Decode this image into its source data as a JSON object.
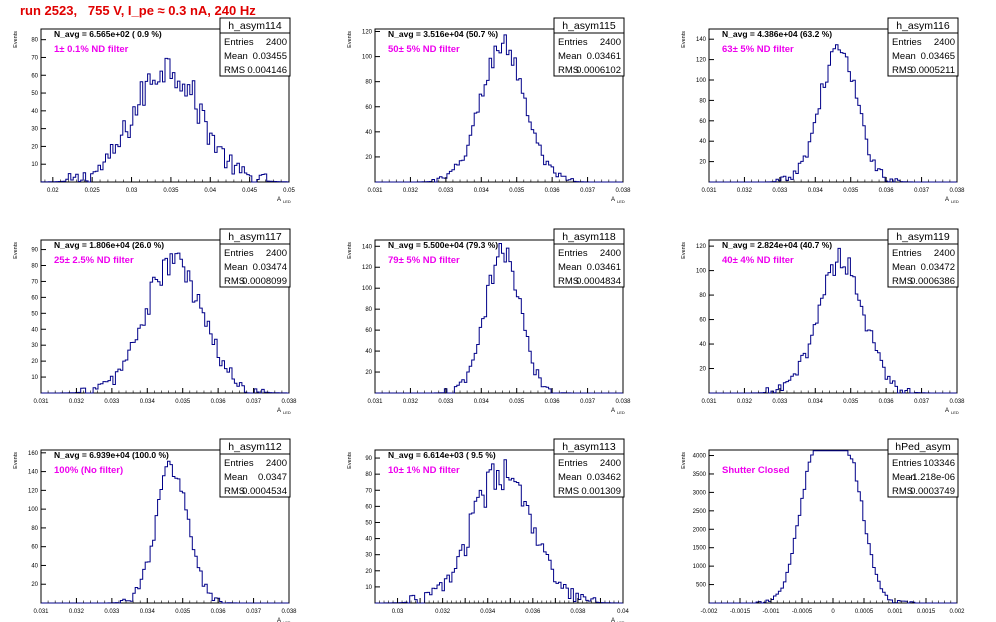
{
  "header": {
    "title": "run 2523,   755 V, I_pe ≈ 0.3 nA, 240 Hz"
  },
  "colors": {
    "histogram": "#000088",
    "filter_label": "#ee00ee",
    "title": "#e00000",
    "frame": "#000000"
  },
  "chart_data": [
    {
      "type": "histogram",
      "name": "h_asym114",
      "filter_label": "1± 0.1% ND filter",
      "navg": "N_avg = 6.565e+02 ( 0.9 %)",
      "stats": {
        "Entries": "2400",
        "Mean": "0.03455",
        "RMS": "0.004146"
      },
      "ylabel": "Events",
      "xlabel": "A",
      "xlabel_sub": "LED",
      "xlim": [
        0.0185,
        0.05
      ],
      "ylim": [
        0,
        86
      ],
      "xticks": [
        0.02,
        0.025,
        0.03,
        0.035,
        0.04,
        0.045,
        0.05
      ],
      "xtick_labels": [
        "0.02",
        "0.025",
        "0.03",
        "0.035",
        "0.04",
        "0.045",
        "0.05"
      ],
      "yticks": [
        10,
        20,
        30,
        40,
        50,
        60,
        70,
        80
      ],
      "ytick_labels": [
        "10",
        "20",
        "30",
        "40",
        "50",
        "60",
        "70",
        "80"
      ],
      "dist": {
        "mu": 0.03455,
        "sigma": 0.004146,
        "peak": 65,
        "noise": 10
      }
    },
    {
      "type": "histogram",
      "name": "h_asym115",
      "filter_label": "50± 5% ND filter",
      "navg": "N_avg = 3.516e+04 (50.7 %)",
      "stats": {
        "Entries": "2400",
        "Mean": "0.03461",
        "RMS": "0.0006102"
      },
      "ylabel": "Events",
      "xlabel": "A",
      "xlabel_sub": "LED",
      "xlim": [
        0.031,
        0.038
      ],
      "ylim": [
        0,
        122
      ],
      "xticks": [
        0.031,
        0.032,
        0.033,
        0.034,
        0.035,
        0.036,
        0.037,
        0.038
      ],
      "xtick_labels": [
        "0.031",
        "0.032",
        "0.033",
        "0.034",
        "0.035",
        "0.036",
        "0.037",
        "0.038"
      ],
      "yticks": [
        20,
        40,
        60,
        80,
        100,
        120
      ],
      "ytick_labels": [
        "20",
        "40",
        "60",
        "80",
        "100",
        "120"
      ],
      "dist": {
        "mu": 0.03461,
        "sigma": 0.0006102,
        "peak": 110,
        "noise": 9
      }
    },
    {
      "type": "histogram",
      "name": "h_asym116",
      "filter_label": "63± 5% ND filter",
      "navg": "N_avg = 4.386e+04 (63.2 %)",
      "stats": {
        "Entries": "2400",
        "Mean": "0.03465",
        "RMS": "0.0005211"
      },
      "ylabel": "Events",
      "xlabel": "A",
      "xlabel_sub": "LED",
      "xlim": [
        0.031,
        0.038
      ],
      "ylim": [
        0,
        150
      ],
      "xticks": [
        0.031,
        0.032,
        0.033,
        0.034,
        0.035,
        0.036,
        0.037,
        0.038
      ],
      "xtick_labels": [
        "0.031",
        "0.032",
        "0.033",
        "0.034",
        "0.035",
        "0.036",
        "0.037",
        "0.038"
      ],
      "yticks": [
        20,
        40,
        60,
        80,
        100,
        120,
        140
      ],
      "ytick_labels": [
        "20",
        "40",
        "60",
        "80",
        "100",
        "120",
        "140"
      ],
      "dist": {
        "mu": 0.03465,
        "sigma": 0.0005211,
        "peak": 130,
        "noise": 10
      }
    },
    {
      "type": "histogram",
      "name": "h_asym117",
      "filter_label": "25± 2.5% ND filter",
      "navg": "N_avg = 1.806e+04 (26.0 %)",
      "stats": {
        "Entries": "2400",
        "Mean": "0.03474",
        "RMS": "0.0008099"
      },
      "ylabel": "Events",
      "xlabel": "A",
      "xlabel_sub": "LED",
      "xlim": [
        0.031,
        0.038
      ],
      "ylim": [
        0,
        96
      ],
      "xticks": [
        0.031,
        0.032,
        0.033,
        0.034,
        0.035,
        0.036,
        0.037,
        0.038
      ],
      "xtick_labels": [
        "0.031",
        "0.032",
        "0.033",
        "0.034",
        "0.035",
        "0.036",
        "0.037",
        "0.038"
      ],
      "yticks": [
        10,
        20,
        30,
        40,
        50,
        60,
        70,
        80,
        90
      ],
      "ytick_labels": [
        "10",
        "20",
        "30",
        "40",
        "50",
        "60",
        "70",
        "80",
        "90"
      ],
      "dist": {
        "mu": 0.03474,
        "sigma": 0.0008099,
        "peak": 82,
        "noise": 9
      }
    },
    {
      "type": "histogram",
      "name": "h_asym118",
      "filter_label": "79± 5% ND filter",
      "navg": "N_avg = 5.500e+04 (79.3 %)",
      "stats": {
        "Entries": "2400",
        "Mean": "0.03461",
        "RMS": "0.0004834"
      },
      "ylabel": "Events",
      "xlabel": "A",
      "xlabel_sub": "LED",
      "xlim": [
        0.031,
        0.038
      ],
      "ylim": [
        0,
        146
      ],
      "xticks": [
        0.031,
        0.032,
        0.033,
        0.034,
        0.035,
        0.036,
        0.037,
        0.038
      ],
      "xtick_labels": [
        "0.031",
        "0.032",
        "0.033",
        "0.034",
        "0.035",
        "0.036",
        "0.037",
        "0.038"
      ],
      "yticks": [
        20,
        40,
        60,
        80,
        100,
        120,
        140
      ],
      "ytick_labels": [
        "20",
        "40",
        "60",
        "80",
        "100",
        "120",
        "140"
      ],
      "dist": {
        "mu": 0.03461,
        "sigma": 0.0004834,
        "peak": 135,
        "noise": 11
      }
    },
    {
      "type": "histogram",
      "name": "h_asym119",
      "filter_label": "40± 4% ND filter",
      "navg": "N_avg = 2.824e+04 (40.7 %)",
      "stats": {
        "Entries": "2400",
        "Mean": "0.03472",
        "RMS": "0.0006386"
      },
      "ylabel": "Events",
      "xlabel": "A",
      "xlabel_sub": "LED",
      "xlim": [
        0.031,
        0.038
      ],
      "ylim": [
        0,
        125
      ],
      "xticks": [
        0.031,
        0.032,
        0.033,
        0.034,
        0.035,
        0.036,
        0.037,
        0.038
      ],
      "xtick_labels": [
        "0.031",
        "0.032",
        "0.033",
        "0.034",
        "0.035",
        "0.036",
        "0.037",
        "0.038"
      ],
      "yticks": [
        20,
        40,
        60,
        80,
        100,
        120
      ],
      "ytick_labels": [
        "20",
        "40",
        "60",
        "80",
        "100",
        "120"
      ],
      "dist": {
        "mu": 0.03472,
        "sigma": 0.0006386,
        "peak": 110,
        "noise": 10
      }
    },
    {
      "type": "histogram",
      "name": "h_asym112",
      "filter_label": "100% (No filter)",
      "navg": "N_avg = 6.939e+04 (100.0 %)",
      "stats": {
        "Entries": "2400",
        "Mean": "0.0347",
        "RMS": "0.0004534"
      },
      "ylabel": "Events",
      "xlabel": "A",
      "xlabel_sub": "LED",
      "xlim": [
        0.031,
        0.038
      ],
      "ylim": [
        0,
        163
      ],
      "xticks": [
        0.031,
        0.032,
        0.033,
        0.034,
        0.035,
        0.036,
        0.037,
        0.038
      ],
      "xtick_labels": [
        "0.031",
        "0.032",
        "0.033",
        "0.034",
        "0.035",
        "0.036",
        "0.037",
        "0.038"
      ],
      "yticks": [
        20,
        40,
        60,
        80,
        100,
        120,
        140,
        160
      ],
      "ytick_labels": [
        "20",
        "40",
        "60",
        "80",
        "100",
        "120",
        "140",
        "160"
      ],
      "dist": {
        "mu": 0.0347,
        "sigma": 0.0004534,
        "peak": 145,
        "noise": 11
      }
    },
    {
      "type": "histogram",
      "name": "h_asym113",
      "filter_label": "10± 1% ND filter",
      "navg": "N_avg = 6.614e+03 ( 9.5 %)",
      "stats": {
        "Entries": "2400",
        "Mean": "0.03462",
        "RMS": "0.001309"
      },
      "ylabel": "Events",
      "xlabel": "A",
      "xlabel_sub": "LED",
      "xlim": [
        0.029,
        0.04
      ],
      "ylim": [
        0,
        95
      ],
      "xticks": [
        0.03,
        0.031,
        0.032,
        0.033,
        0.034,
        0.035,
        0.036,
        0.037,
        0.038,
        0.039,
        0.04
      ],
      "xtick_labels": [
        "0.03",
        "",
        "0.032",
        "",
        "0.034",
        "",
        "0.036",
        "",
        "0.038",
        "",
        "0.04"
      ],
      "yticks": [
        10,
        20,
        30,
        40,
        50,
        60,
        70,
        80,
        90
      ],
      "ytick_labels": [
        "10",
        "20",
        "30",
        "40",
        "50",
        "60",
        "70",
        "80",
        "90"
      ],
      "dist": {
        "mu": 0.03462,
        "sigma": 0.001309,
        "peak": 80,
        "noise": 10
      }
    },
    {
      "type": "histogram",
      "name": "hPed_asym",
      "filter_label": "Shutter Closed",
      "navg": "",
      "stats": {
        "Entries": "103346",
        "Mean": "-1.218e-06",
        "RMS": "0.0003749"
      },
      "ylabel": "Events",
      "xlabel": "",
      "xlabel_sub": "",
      "xlim": [
        -0.002,
        0.002
      ],
      "ylim": [
        0,
        4150
      ],
      "xticks": [
        -0.002,
        -0.0015,
        -0.001,
        -0.0005,
        0,
        0.0005,
        0.001,
        0.0015,
        0.002
      ],
      "xtick_labels": [
        "-0.002",
        "-0.0015",
        "-0.001",
        "-0.0005",
        "0",
        "0.0005",
        "0.001",
        "0.0015",
        "0.002"
      ],
      "yticks": [
        500,
        1000,
        1500,
        2000,
        2500,
        3000,
        3500,
        4000
      ],
      "ytick_labels": [
        "500",
        "1000",
        "1500",
        "2000",
        "2500",
        "3000",
        "3500",
        "4000"
      ],
      "dist": {
        "bimodal": true,
        "mu1": -0.0003,
        "mu2": 0.00025,
        "sigma": 0.00025,
        "peak": 3900,
        "noise": 120
      }
    }
  ]
}
